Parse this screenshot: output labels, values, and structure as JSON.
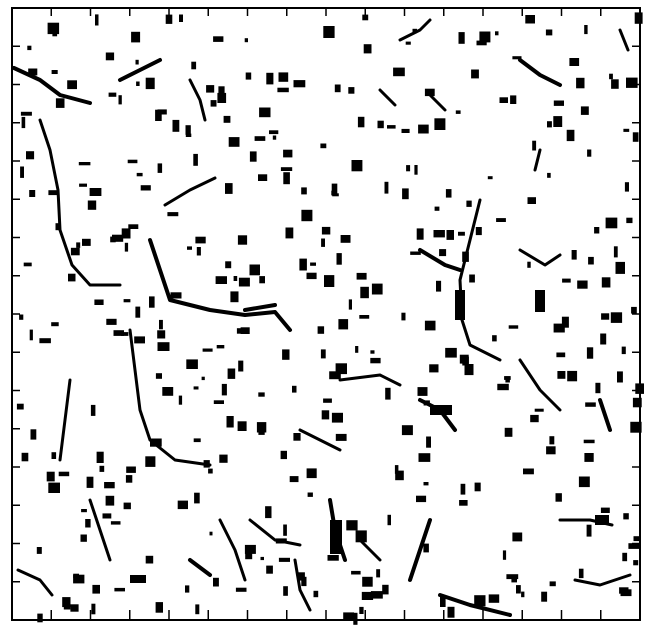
{
  "image": {
    "description_kind": "binary-cellular-network-plot",
    "colors": {
      "background": "#ffffff",
      "ink": "#000000"
    }
  }
}
